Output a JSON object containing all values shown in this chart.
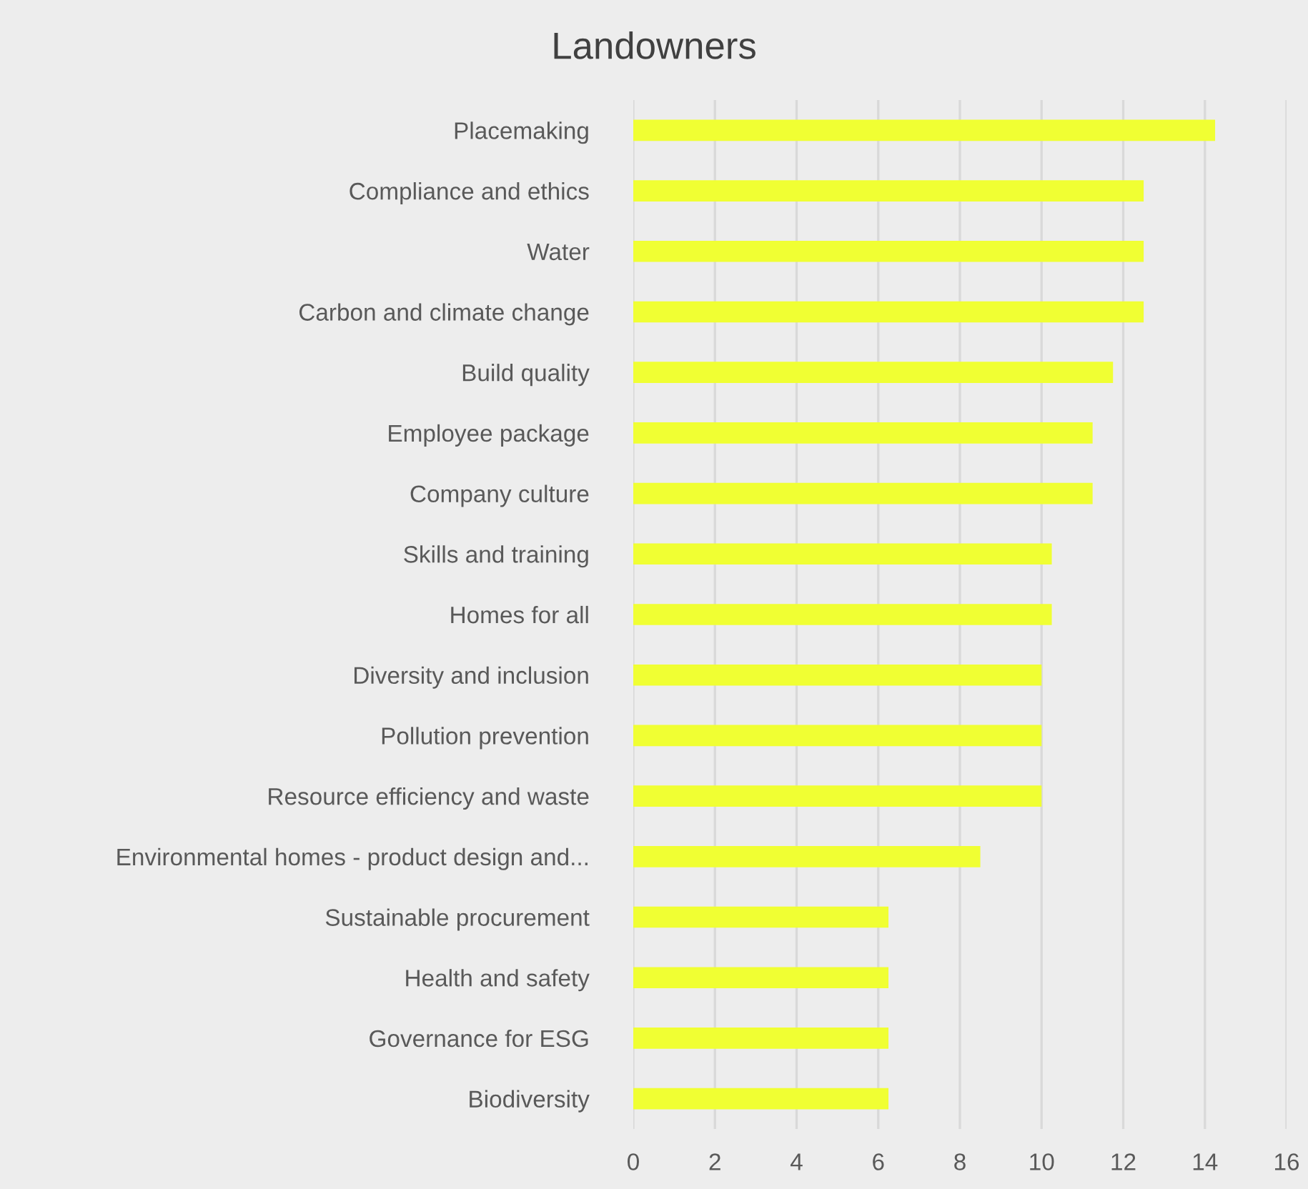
{
  "chart_data": {
    "type": "bar",
    "orientation": "horizontal",
    "title": "Landowners",
    "categories": [
      "Placemaking",
      "Compliance and ethics",
      "Water",
      "Carbon and climate change",
      "Build quality",
      "Employee package",
      "Company culture",
      "Skills and training",
      "Homes for all",
      "Diversity and inclusion",
      "Pollution prevention",
      "Resource efficiency and waste",
      "Environmental homes - product design and...",
      "Sustainable procurement",
      "Health and safety",
      "Governance for ESG",
      "Biodiversity"
    ],
    "values": [
      14.25,
      12.5,
      12.5,
      12.5,
      11.75,
      11.25,
      11.25,
      10.25,
      10.25,
      10,
      10,
      10,
      8.5,
      6.25,
      6.25,
      6.25,
      6.25
    ],
    "color": "#f0ff33",
    "xlim": [
      0,
      16
    ],
    "xticks": [
      0,
      2,
      4,
      6,
      8,
      10,
      12,
      14,
      16
    ],
    "grid": "x"
  }
}
